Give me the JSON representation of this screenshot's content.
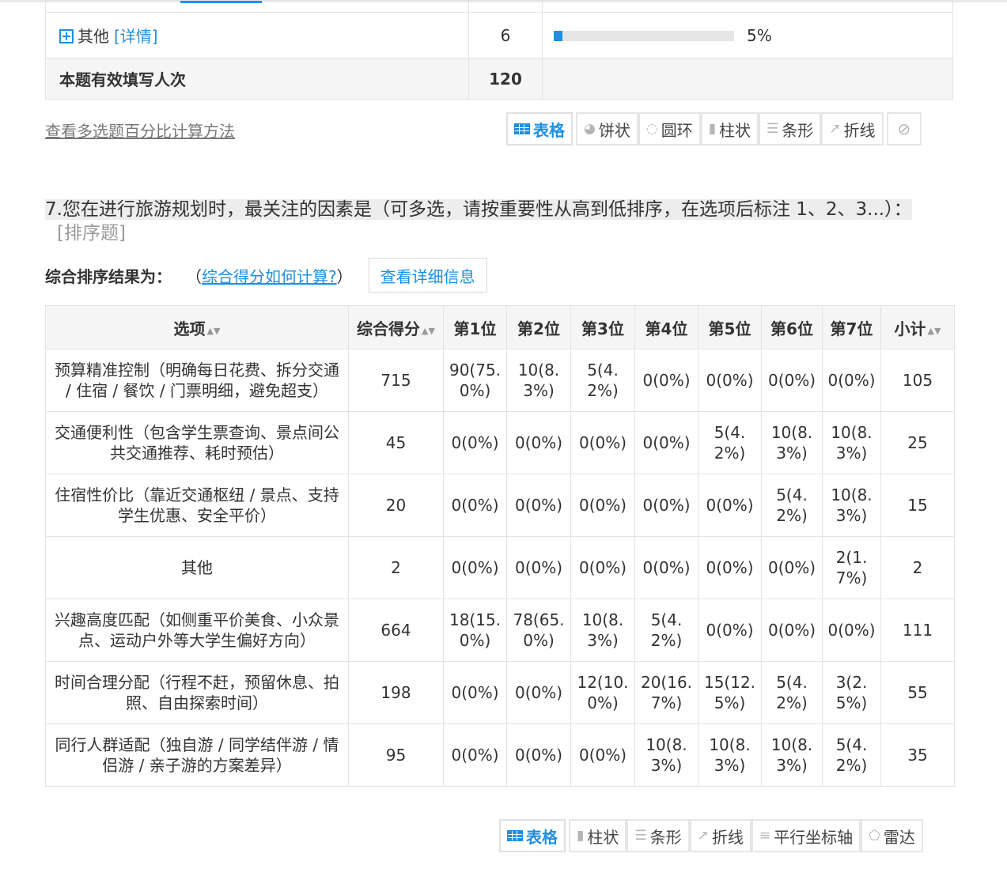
{
  "prev_table": {
    "other_row": {
      "label": "其他",
      "detail": "[详情]",
      "count": "6",
      "percent": "5%",
      "fill": 0.05
    },
    "total_row": {
      "label": "本题有效填写人次",
      "count": "120"
    }
  },
  "calc_link": "查看多选题百分比计算方法",
  "switch1": {
    "table": "表格",
    "pie": "饼状",
    "ring": "圆环",
    "column": "柱状",
    "bar": "条形",
    "line": "折线"
  },
  "question": {
    "title": "7.您在进行旅游规划时，最关注的因素是（可多选，请按重要性从高到低排序，在选项后标注 1、2、3...）：",
    "type": "[排序题]"
  },
  "rank": {
    "label": "综合排序结果为：",
    "paren_open": "（",
    "link": "综合得分如何计算?",
    "paren_close": "）",
    "detail_button": "查看详细信息"
  },
  "table": {
    "headers": [
      "选项",
      "综合得分",
      "第1位",
      "第2位",
      "第3位",
      "第4位",
      "第5位",
      "第6位",
      "第7位",
      "小计"
    ],
    "rows": [
      [
        "预算精准控制（明确每日花费、拆分交通 / 住宿 / 餐饮 / 门票明细，避免超支）",
        "715",
        "90(75.0%)",
        "10(8.3%)",
        "5(4.2%)",
        "0(0%)",
        "0(0%)",
        "0(0%)",
        "0(0%)",
        "105"
      ],
      [
        "交通便利性（包含学生票查询、景点间公共交通推荐、耗时预估）",
        "45",
        "0(0%)",
        "0(0%)",
        "0(0%)",
        "0(0%)",
        "5(4.2%)",
        "10(8.3%)",
        "10(8.3%)",
        "25"
      ],
      [
        "住宿性价比（靠近交通枢纽 / 景点、支持学生优惠、安全平价）",
        "20",
        "0(0%)",
        "0(0%)",
        "0(0%)",
        "0(0%)",
        "0(0%)",
        "5(4.2%)",
        "10(8.3%)",
        "15"
      ],
      [
        "其他",
        "2",
        "0(0%)",
        "0(0%)",
        "0(0%)",
        "0(0%)",
        "0(0%)",
        "0(0%)",
        "2(1.7%)",
        "2"
      ],
      [
        "兴趣高度匹配（如侧重平价美食、小众景点、运动户外等大学生偏好方向）",
        "664",
        "18(15.0%)",
        "78(65.0%)",
        "10(8.3%)",
        "5(4.2%)",
        "0(0%)",
        "0(0%)",
        "0(0%)",
        "111"
      ],
      [
        "时间合理分配（行程不赶，预留休息、拍照、自由探索时间）",
        "198",
        "0(0%)",
        "0(0%)",
        "12(10.0%)",
        "20(16.7%)",
        "15(12.5%)",
        "5(4.2%)",
        "3(2.5%)",
        "55"
      ],
      [
        "同行人群适配（独自游 / 同学结伴游 / 情侣游 / 亲子游的方案差异）",
        "95",
        "0(0%)",
        "0(0%)",
        "0(0%)",
        "10(8.3%)",
        "10(8.3%)",
        "10(8.3%)",
        "5(4.2%)",
        "35"
      ]
    ]
  },
  "switch2": {
    "table": "表格",
    "column": "柱状",
    "bar": "条形",
    "line": "折线",
    "parallel": "平行坐标轴",
    "radar": "雷达"
  }
}
